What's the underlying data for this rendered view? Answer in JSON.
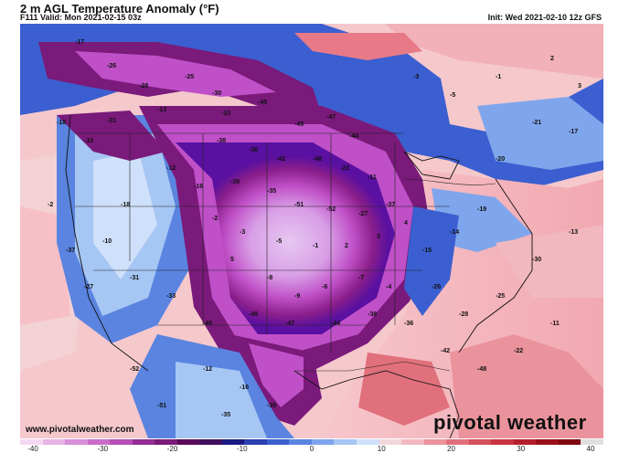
{
  "header": {
    "title": "2 m AGL Temperature Anomaly (°F)",
    "valid": "F111 Valid: Mon 2021-02-15 03z",
    "init": "Init: Wed 2021-02-10 12z GFS"
  },
  "footer": {
    "website": "www.pivotalweather.com",
    "brand": "pivotal weather"
  },
  "colorbar": {
    "ticks": [
      "-40",
      "-30",
      "-20",
      "-10",
      "0",
      "10",
      "20",
      "30",
      "40"
    ],
    "colors": [
      "#f3d9f3",
      "#e6b4e6",
      "#d78fd7",
      "#c96cc9",
      "#b64fb6",
      "#932e93",
      "#7a1a7a",
      "#5a0a5a",
      "#3f0f60",
      "#1a1a80",
      "#2a3fb0",
      "#3b5fd0",
      "#5a84e0",
      "#7fa6ec",
      "#a6c6f4",
      "#cfe0fa",
      "#f3d7dc",
      "#f2b8bf",
      "#ea939c",
      "#e0707b",
      "#d54f5c",
      "#c8333f",
      "#b51e2c",
      "#9a0e1a",
      "#7e0610",
      "#e0e0e0"
    ]
  },
  "map_labels": [
    "-17",
    "-26",
    "-28",
    "-25",
    "-30",
    "-13",
    "-18",
    "-10",
    "-31",
    "-33",
    "-45",
    "-49",
    "-47",
    "-44",
    "-38",
    "-36",
    "-42",
    "-48",
    "-22",
    "-11",
    "-12",
    "-16",
    "-39",
    "-35",
    "-51",
    "-52",
    "-27",
    "-37",
    "-2",
    "-3",
    "-5",
    "-1",
    "2",
    "3",
    "4",
    "5",
    "-8",
    "-9",
    "-6",
    "-7",
    "-4",
    "-15",
    "-14",
    "-19",
    "-20",
    "-21"
  ]
}
